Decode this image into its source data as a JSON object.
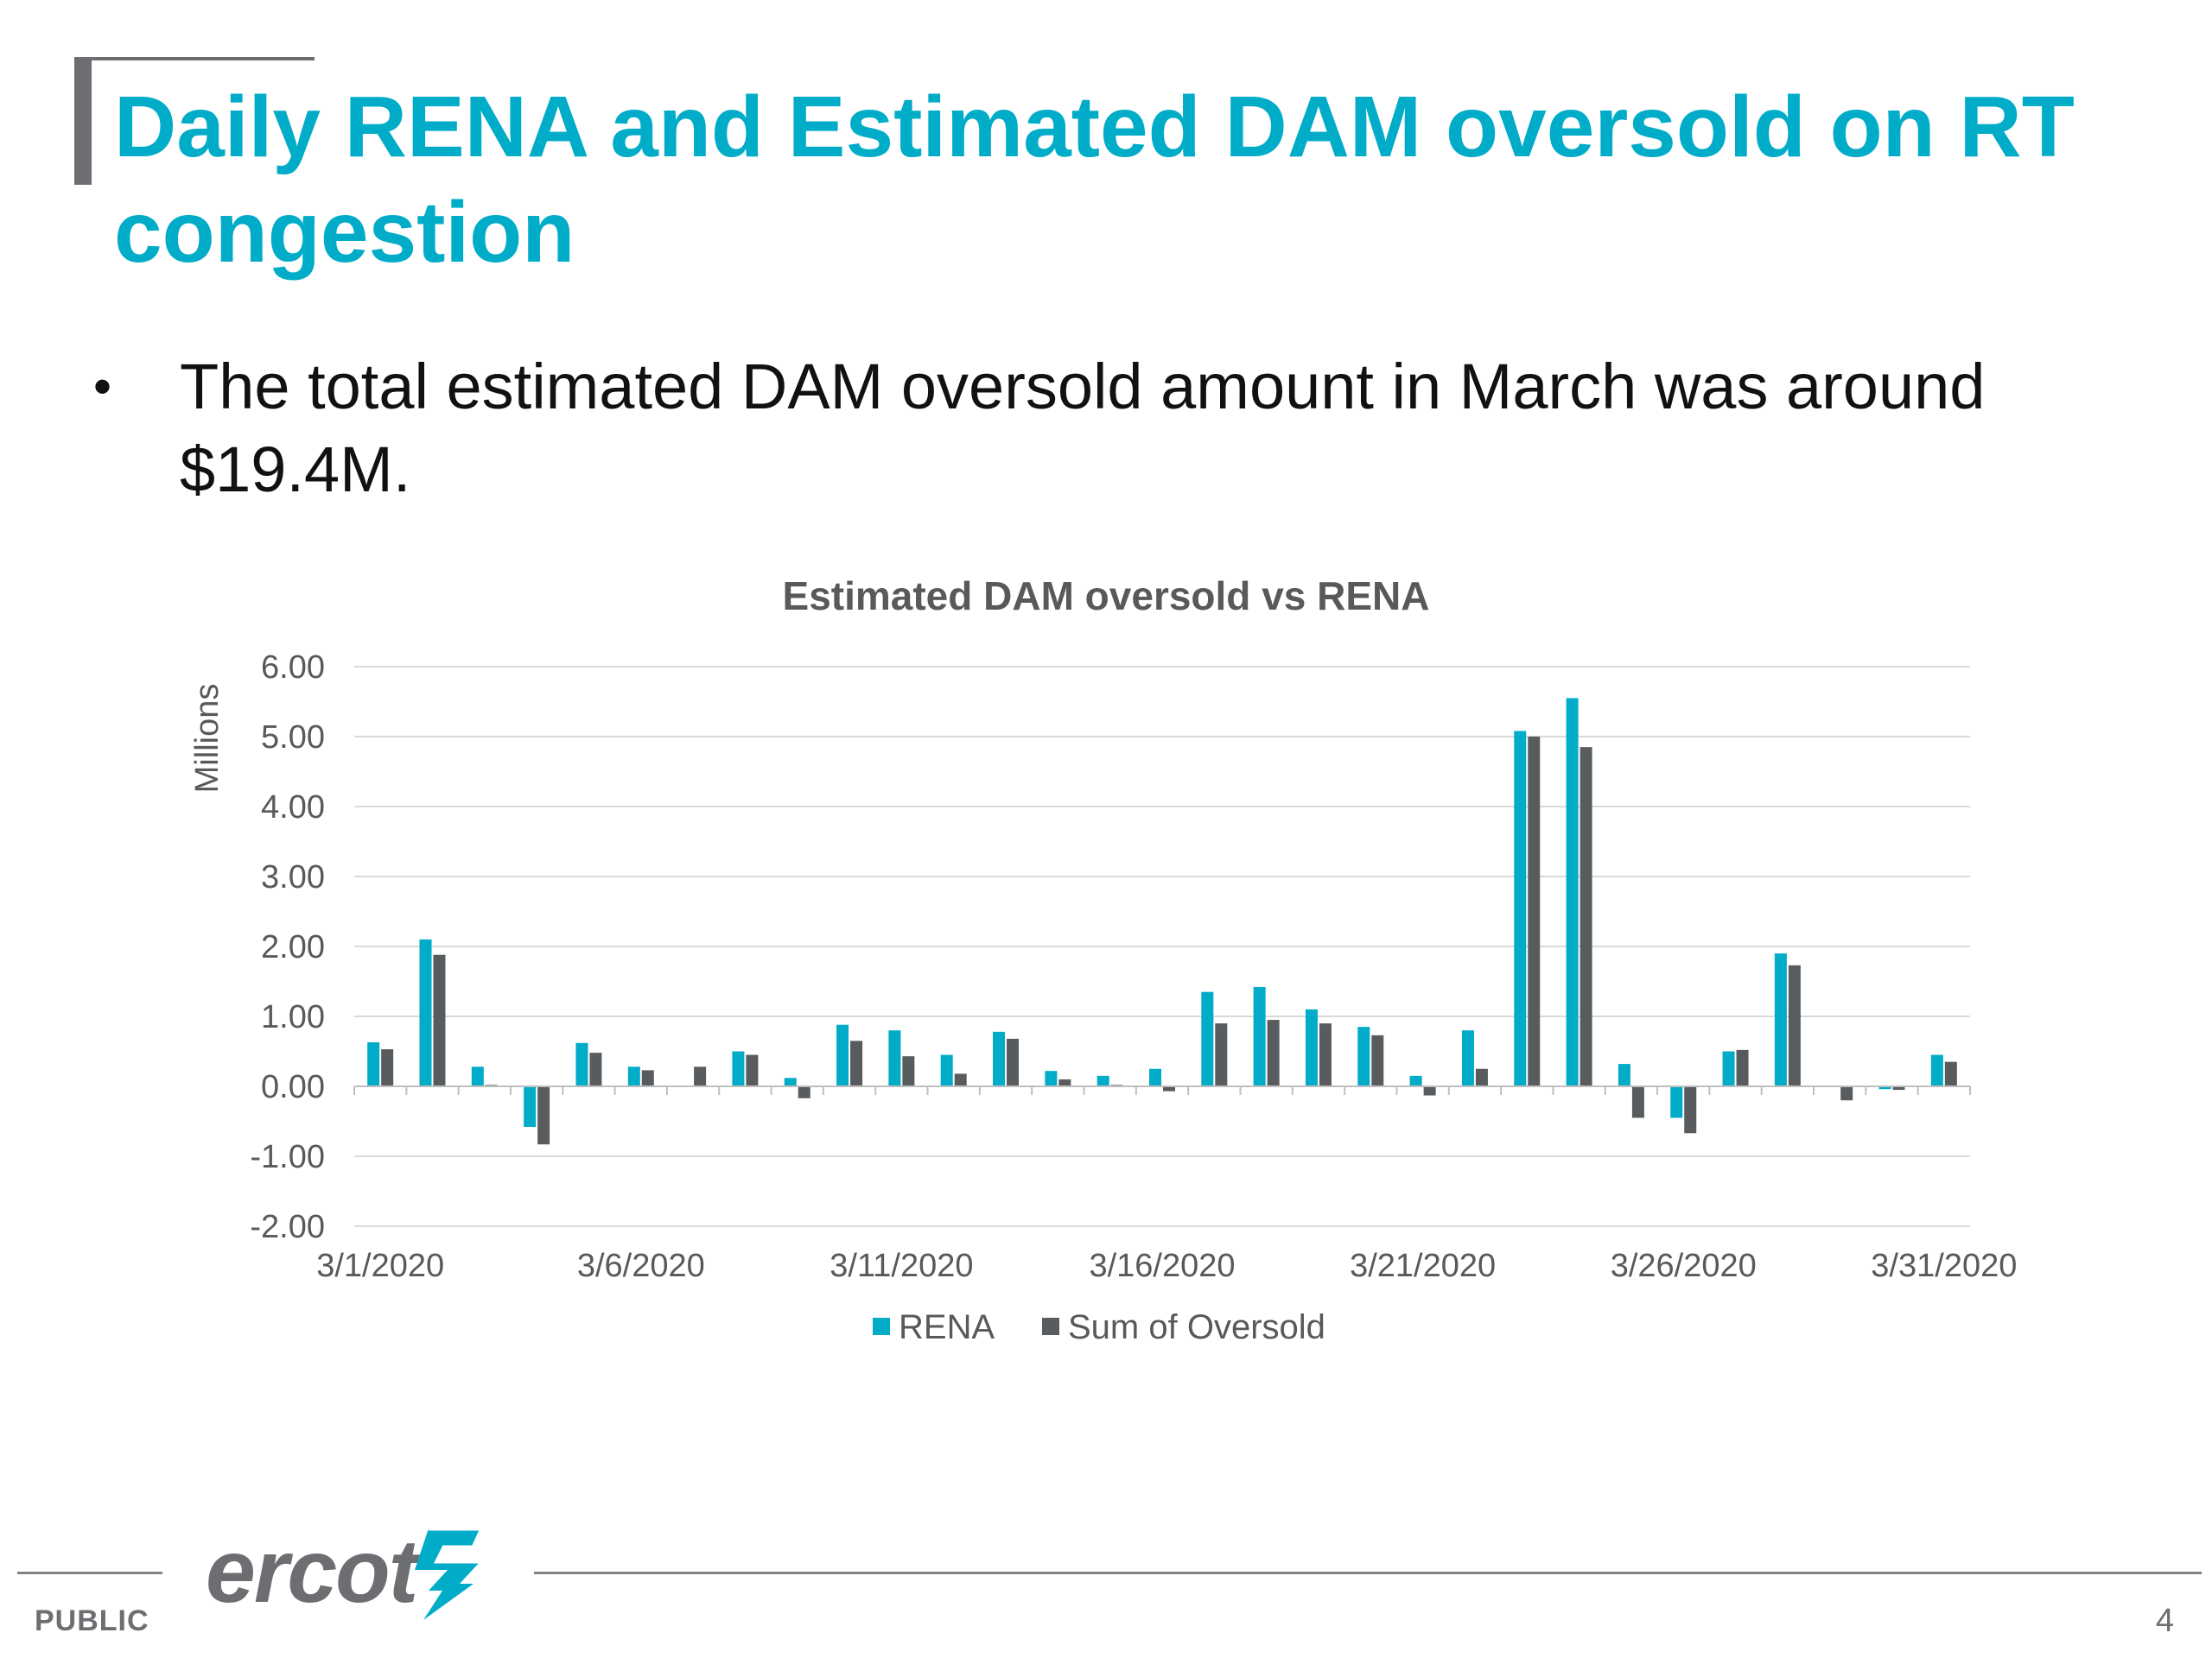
{
  "slide": {
    "title": "Daily RENA and Estimated DAM oversold on RT congestion",
    "bullet": "The total estimated DAM oversold amount in March was around $19.4M.",
    "bullet_marker": "•"
  },
  "footer": {
    "brand": "ercot",
    "classification": "PUBLIC",
    "page_number": "4"
  },
  "colors": {
    "title": "#00acc8",
    "rena": "#00acc8",
    "oversold": "#595c5f",
    "grid": "#d9d9d9",
    "axis_text": "#595959"
  },
  "chart_data": {
    "type": "bar",
    "title": "Estimated DAM oversold vs RENA",
    "ylabel": "Millions",
    "ylim": [
      -2,
      6
    ],
    "yticks": [
      "6.00",
      "5.00",
      "4.00",
      "3.00",
      "2.00",
      "1.00",
      "0.00",
      "-1.00",
      "-2.00"
    ],
    "ytick_values": [
      6,
      5,
      4,
      3,
      2,
      1,
      0,
      -1,
      -2
    ],
    "grid": true,
    "legend_position": "bottom",
    "categories": [
      "3/1/2020",
      "3/2/2020",
      "3/3/2020",
      "3/4/2020",
      "3/5/2020",
      "3/6/2020",
      "3/7/2020",
      "3/8/2020",
      "3/9/2020",
      "3/10/2020",
      "3/11/2020",
      "3/12/2020",
      "3/13/2020",
      "3/14/2020",
      "3/15/2020",
      "3/16/2020",
      "3/17/2020",
      "3/18/2020",
      "3/19/2020",
      "3/20/2020",
      "3/21/2020",
      "3/22/2020",
      "3/23/2020",
      "3/24/2020",
      "3/25/2020",
      "3/26/2020",
      "3/27/2020",
      "3/28/2020",
      "3/29/2020",
      "3/30/2020",
      "3/31/2020"
    ],
    "xtick_labels": [
      "3/1/2020",
      "3/6/2020",
      "3/11/2020",
      "3/16/2020",
      "3/21/2020",
      "3/26/2020",
      "3/31/2020"
    ],
    "series": [
      {
        "name": "RENA",
        "values": [
          0.63,
          2.1,
          0.28,
          -0.58,
          0.62,
          0.28,
          0.0,
          0.5,
          0.12,
          0.88,
          0.8,
          0.45,
          0.78,
          0.22,
          0.15,
          0.25,
          1.35,
          1.42,
          1.1,
          0.85,
          0.15,
          0.8,
          5.08,
          5.55,
          0.32,
          -0.45,
          0.5,
          1.9,
          0.0,
          -0.04,
          0.45
        ]
      },
      {
        "name": "Sum of Oversold",
        "values": [
          0.53,
          1.88,
          0.02,
          -0.83,
          0.48,
          0.23,
          0.28,
          0.45,
          -0.17,
          0.65,
          0.43,
          0.18,
          0.68,
          0.1,
          0.02,
          -0.07,
          0.9,
          0.95,
          0.9,
          0.73,
          -0.13,
          0.25,
          5.0,
          4.85,
          -0.45,
          -0.67,
          0.52,
          1.73,
          -0.2,
          -0.05,
          0.35
        ]
      }
    ]
  }
}
